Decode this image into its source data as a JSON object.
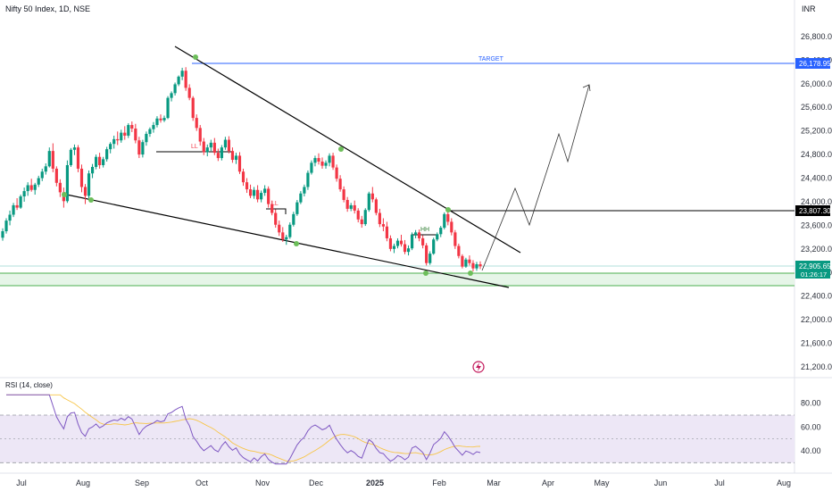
{
  "header": {
    "title": "Nifty 50 Index, 1D, NSE",
    "currency": "INR"
  },
  "chart_data": {
    "type": "candlestick",
    "title": "Nifty 50 Index, 1D, NSE",
    "currency": "INR",
    "y_ticks": [
      21200,
      21600,
      22000,
      22400,
      22800,
      23200,
      23600,
      24000,
      24400,
      24800,
      25200,
      25600,
      26000,
      26400,
      26800
    ],
    "y_range": [
      21140,
      26980
    ],
    "x_ticks": [
      "Jul",
      "Aug",
      "Sep",
      "Oct",
      "Nov",
      "Dec",
      "2025",
      "Feb",
      "Mar",
      "Apr",
      "May",
      "Jun",
      "Jul",
      "Aug"
    ],
    "price_tags": [
      {
        "name": "target",
        "value": "26,178.95",
        "color": "#2962ff"
      },
      {
        "name": "resistance",
        "value": "23,807.30",
        "color": "#000000"
      },
      {
        "name": "last",
        "value": "22,905.65",
        "countdown": "01:26:17",
        "color": "#089981"
      }
    ],
    "annotations": {
      "target": "TARGET",
      "lower_low_1": "LL",
      "lower_low_2": "LL",
      "higher_high": "HH"
    },
    "candles": [
      [
        23390,
        23550,
        23340,
        23500
      ],
      [
        23500,
        23720,
        23460,
        23680
      ],
      [
        23680,
        23850,
        23600,
        23780
      ],
      [
        23780,
        23980,
        23740,
        23940
      ],
      [
        23940,
        24060,
        23860,
        23900
      ],
      [
        23900,
        24120,
        23880,
        24090
      ],
      [
        24090,
        24240,
        24000,
        24180
      ],
      [
        24180,
        24330,
        24100,
        24280
      ],
      [
        24280,
        24390,
        24170,
        24200
      ],
      [
        24200,
        24320,
        24120,
        24290
      ],
      [
        24290,
        24440,
        24250,
        24400
      ],
      [
        24400,
        24560,
        24350,
        24510
      ],
      [
        24510,
        24650,
        24460,
        24600
      ],
      [
        24600,
        24920,
        24580,
        24860
      ],
      [
        24860,
        24990,
        24500,
        24560
      ],
      [
        24560,
        24600,
        24260,
        24320
      ],
      [
        24320,
        24380,
        24080,
        24160
      ],
      [
        24160,
        24240,
        23900,
        24010
      ],
      [
        24010,
        24700,
        23980,
        24620
      ],
      [
        24620,
        24910,
        24590,
        24880
      ],
      [
        24880,
        24970,
        24790,
        24920
      ],
      [
        24920,
        24960,
        24500,
        24560
      ],
      [
        24560,
        24630,
        24160,
        24250
      ],
      [
        24250,
        24300,
        23960,
        24100
      ],
      [
        24100,
        24530,
        24060,
        24480
      ],
      [
        24480,
        24640,
        24400,
        24590
      ],
      [
        24590,
        24800,
        24550,
        24760
      ],
      [
        24760,
        24830,
        24560,
        24620
      ],
      [
        24620,
        24760,
        24580,
        24720
      ],
      [
        24720,
        24930,
        24680,
        24890
      ],
      [
        24890,
        25010,
        24820,
        24980
      ],
      [
        24980,
        25120,
        24900,
        25060
      ],
      [
        25060,
        25190,
        24960,
        25040
      ],
      [
        25040,
        25220,
        25000,
        25170
      ],
      [
        25170,
        25280,
        25050,
        25120
      ],
      [
        25120,
        25330,
        25080,
        25300
      ],
      [
        25300,
        25360,
        25180,
        25240
      ],
      [
        25240,
        25320,
        24990,
        25040
      ],
      [
        25040,
        25100,
        24740,
        24800
      ],
      [
        24800,
        25050,
        24750,
        25010
      ],
      [
        25010,
        25190,
        24950,
        25150
      ],
      [
        25150,
        25260,
        25100,
        25230
      ],
      [
        25230,
        25350,
        25170,
        25300
      ],
      [
        25300,
        25450,
        25260,
        25410
      ],
      [
        25410,
        25480,
        25340,
        25380
      ],
      [
        25380,
        25460,
        25350,
        25420
      ],
      [
        25420,
        25790,
        25400,
        25760
      ],
      [
        25760,
        25870,
        25700,
        25840
      ],
      [
        25840,
        26020,
        25800,
        25990
      ],
      [
        25990,
        26140,
        25960,
        26120
      ],
      [
        26120,
        26270,
        26060,
        26220
      ],
      [
        26220,
        26280,
        25880,
        25930
      ],
      [
        25930,
        25990,
        25720,
        25760
      ],
      [
        25760,
        25790,
        25370,
        25420
      ],
      [
        25420,
        25480,
        25200,
        25250
      ],
      [
        25250,
        25300,
        24950,
        25020
      ],
      [
        25020,
        25080,
        24790,
        24840
      ],
      [
        24840,
        24970,
        24770,
        24920
      ],
      [
        24920,
        25050,
        24860,
        25000
      ],
      [
        25000,
        25080,
        24790,
        24830
      ],
      [
        24830,
        24900,
        24690,
        24740
      ],
      [
        24740,
        24960,
        24700,
        24920
      ],
      [
        24920,
        25100,
        24880,
        25050
      ],
      [
        25050,
        25110,
        24820,
        24860
      ],
      [
        24860,
        24920,
        24660,
        24710
      ],
      [
        24710,
        24830,
        24640,
        24780
      ],
      [
        24780,
        24840,
        24470,
        24510
      ],
      [
        24510,
        24560,
        24270,
        24330
      ],
      [
        24330,
        24400,
        24150,
        24210
      ],
      [
        24210,
        24290,
        24060,
        24100
      ],
      [
        24100,
        24250,
        24050,
        24200
      ],
      [
        24200,
        24280,
        23990,
        24040
      ],
      [
        24040,
        24190,
        23990,
        24150
      ],
      [
        24150,
        24280,
        24100,
        24220
      ],
      [
        24220,
        24260,
        23900,
        23960
      ],
      [
        23960,
        24020,
        23770,
        23810
      ],
      [
        23810,
        23870,
        23560,
        23610
      ],
      [
        23610,
        23680,
        23420,
        23480
      ],
      [
        23480,
        23570,
        23320,
        23360
      ],
      [
        23360,
        23440,
        23270,
        23400
      ],
      [
        23400,
        23650,
        23370,
        23610
      ],
      [
        23610,
        23830,
        23580,
        23790
      ],
      [
        23790,
        24030,
        23760,
        23990
      ],
      [
        23990,
        24180,
        23960,
        24140
      ],
      [
        24140,
        24290,
        24090,
        24250
      ],
      [
        24250,
        24530,
        24200,
        24490
      ],
      [
        24490,
        24700,
        24460,
        24660
      ],
      [
        24660,
        24780,
        24600,
        24740
      ],
      [
        24740,
        24820,
        24630,
        24680
      ],
      [
        24680,
        24750,
        24560,
        24610
      ],
      [
        24610,
        24700,
        24560,
        24660
      ],
      [
        24660,
        24820,
        24600,
        24780
      ],
      [
        24780,
        24830,
        24540,
        24580
      ],
      [
        24580,
        24630,
        24340,
        24390
      ],
      [
        24390,
        24450,
        24170,
        24210
      ],
      [
        24210,
        24260,
        23990,
        24030
      ],
      [
        24030,
        24080,
        23830,
        23880
      ],
      [
        23880,
        23980,
        23840,
        23940
      ],
      [
        23940,
        24020,
        23800,
        23850
      ],
      [
        23850,
        23890,
        23650,
        23700
      ],
      [
        23700,
        23760,
        23560,
        23620
      ],
      [
        23620,
        23890,
        23590,
        23860
      ],
      [
        23860,
        24170,
        23830,
        24140
      ],
      [
        24140,
        24250,
        23990,
        24040
      ],
      [
        24040,
        24070,
        23770,
        23810
      ],
      [
        23810,
        23880,
        23570,
        23620
      ],
      [
        23620,
        23720,
        23500,
        23580
      ],
      [
        23580,
        23660,
        23330,
        23380
      ],
      [
        23380,
        23430,
        23160,
        23200
      ],
      [
        23200,
        23290,
        23130,
        23250
      ],
      [
        23250,
        23380,
        23210,
        23340
      ],
      [
        23340,
        23440,
        23240,
        23280
      ],
      [
        23280,
        23350,
        23110,
        23150
      ],
      [
        23150,
        23260,
        23090,
        23210
      ],
      [
        23210,
        23480,
        23180,
        23440
      ],
      [
        23440,
        23520,
        23380,
        23480
      ],
      [
        23480,
        23530,
        23330,
        23380
      ],
      [
        23380,
        23430,
        23210,
        23260
      ],
      [
        23260,
        23300,
        22920,
        22960
      ],
      [
        22960,
        23160,
        22930,
        23120
      ],
      [
        23120,
        23390,
        23100,
        23360
      ],
      [
        23360,
        23480,
        23330,
        23450
      ],
      [
        23450,
        23590,
        23400,
        23560
      ],
      [
        23560,
        23820,
        23530,
        23790
      ],
      [
        23790,
        23830,
        23600,
        23660
      ],
      [
        23660,
        23720,
        23430,
        23480
      ],
      [
        23480,
        23520,
        23200,
        23250
      ],
      [
        23250,
        23290,
        23040,
        23080
      ],
      [
        23080,
        23110,
        22870,
        22900
      ],
      [
        22900,
        23050,
        22880,
        23020
      ],
      [
        23020,
        23090,
        22920,
        22960
      ],
      [
        22960,
        23010,
        22820,
        22870
      ],
      [
        22870,
        22980,
        22830,
        22940
      ],
      [
        22940,
        22990,
        22860,
        22905.65
      ]
    ],
    "rsi": {
      "label": "RSI (14, close)",
      "y_ticks": [
        40,
        60,
        80
      ],
      "y_range": [
        28,
        88
      ],
      "upper_band": 70,
      "middle_band": 50,
      "lower_band": 30,
      "rsi_color": "#7e57c2",
      "ma_color": "#f7c548"
    }
  },
  "colors": {
    "up": "#089981",
    "down": "#f23645",
    "target": "#2962ff",
    "support_zone": "#e6f5e8",
    "support_line": "#4caf50",
    "pivot": "#6dbe5a",
    "rsi_band": "#ede7f6"
  }
}
